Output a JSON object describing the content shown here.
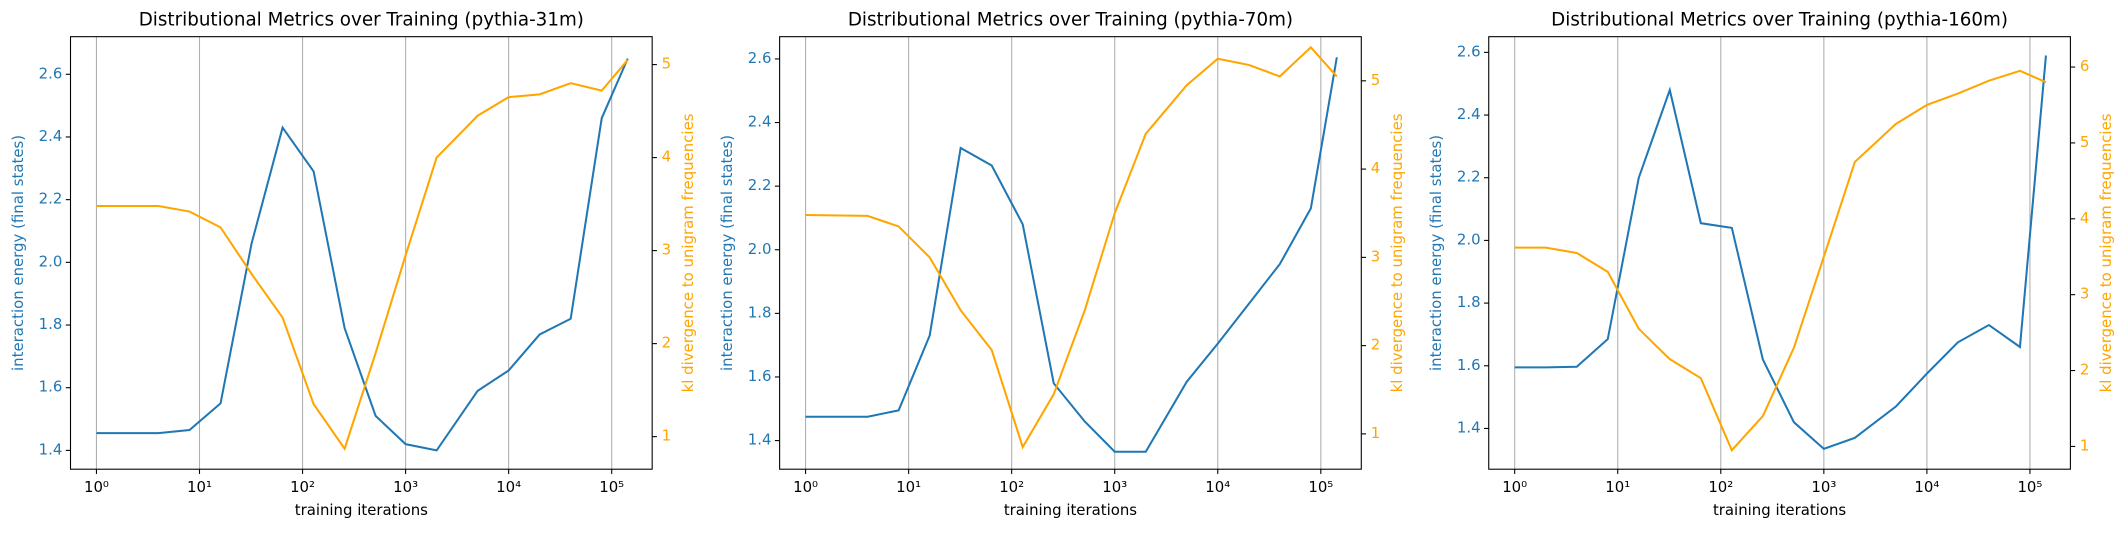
{
  "chart_data": [
    {
      "type": "line",
      "title": "Distributional Metrics over Training (pythia-31m)",
      "xlabel": "training iterations",
      "ylabel": "interaction energy (final states)",
      "y2label": "kl divergence to unigram frequencies",
      "xscale": "log",
      "grid": "x",
      "x": [
        1,
        4,
        8,
        16,
        32,
        64,
        128,
        256,
        512,
        1000,
        2000,
        5000,
        10000,
        20000,
        40000,
        80000,
        143000
      ],
      "series": [
        {
          "color": "#1f77b4",
          "axis": "y",
          "values": [
            1.455,
            1.455,
            1.465,
            1.55,
            2.06,
            2.43,
            2.29,
            1.79,
            1.51,
            1.42,
            1.4,
            1.59,
            1.655,
            1.77,
            1.82,
            2.46,
            2.65
          ]
        },
        {
          "color": "#ffa500",
          "axis": "y2",
          "values": [
            3.48,
            3.48,
            3.42,
            3.25,
            2.75,
            2.28,
            1.35,
            0.87,
            1.9,
            2.95,
            4.0,
            4.45,
            4.65,
            4.68,
            4.8,
            4.72,
            5.05
          ]
        }
      ],
      "xlim": [
        0.56,
        247000
      ],
      "xticks": [
        {
          "value": 1,
          "label": "10⁰"
        },
        {
          "value": 10,
          "label": "10¹"
        },
        {
          "value": 100,
          "label": "10²"
        },
        {
          "value": 1000,
          "label": "10³"
        },
        {
          "value": 10000,
          "label": "10⁴"
        },
        {
          "value": 100000,
          "label": "10⁵"
        }
      ],
      "ylim": [
        1.34,
        2.72
      ],
      "yticks": [
        1.4,
        1.6,
        1.8,
        {
          "value": 2,
          "label": "2.0"
        },
        2.2,
        2.4,
        2.6
      ],
      "y2lim": [
        0.65,
        5.3
      ],
      "y2ticks": [
        1,
        2,
        3,
        4,
        5
      ]
    },
    {
      "type": "line",
      "title": "Distributional Metrics over Training (pythia-70m)",
      "xlabel": "training iterations",
      "ylabel": "interaction energy (final states)",
      "y2label": "kl divergence to unigram frequencies",
      "xscale": "log",
      "grid": "x",
      "x": [
        1,
        4,
        8,
        16,
        32,
        64,
        128,
        256,
        512,
        1000,
        2000,
        5000,
        10000,
        20000,
        40000,
        80000,
        143000
      ],
      "series": [
        {
          "color": "#1f77b4",
          "axis": "y",
          "values": [
            1.475,
            1.475,
            1.495,
            1.73,
            2.32,
            2.265,
            2.08,
            1.58,
            1.46,
            1.365,
            1.365,
            1.585,
            1.705,
            1.83,
            1.955,
            2.13,
            2.605
          ]
        },
        {
          "color": "#ffa500",
          "axis": "y2",
          "values": [
            3.48,
            3.47,
            3.35,
            3.0,
            2.4,
            1.95,
            0.85,
            1.45,
            2.4,
            3.5,
            4.4,
            4.95,
            5.25,
            5.18,
            5.05,
            5.38,
            5.05
          ]
        }
      ],
      "xlim": [
        0.56,
        247000
      ],
      "xticks": [
        {
          "value": 1,
          "label": "10⁰"
        },
        {
          "value": 10,
          "label": "10¹"
        },
        {
          "value": 100,
          "label": "10²"
        },
        {
          "value": 1000,
          "label": "10³"
        },
        {
          "value": 10000,
          "label": "10⁴"
        },
        {
          "value": 100000,
          "label": "10⁵"
        }
      ],
      "ylim": [
        1.31,
        2.67
      ],
      "yticks": [
        1.4,
        1.6,
        1.8,
        {
          "value": 2,
          "label": "2.0"
        },
        2.2,
        2.4,
        2.6
      ],
      "y2lim": [
        0.6,
        5.5
      ],
      "y2ticks": [
        1,
        2,
        3,
        4,
        5
      ]
    },
    {
      "type": "line",
      "title": "Distributional Metrics over Training (pythia-160m)",
      "xlabel": "training iterations",
      "ylabel": "interaction energy (final states)",
      "y2label": "kl divergence to unigram frequencies",
      "xscale": "log",
      "grid": "x",
      "x": [
        1,
        2,
        4,
        8,
        16,
        32,
        64,
        128,
        256,
        512,
        1000,
        2000,
        5000,
        10000,
        20000,
        40000,
        80000,
        143000
      ],
      "series": [
        {
          "color": "#1f77b4",
          "axis": "y",
          "values": [
            1.595,
            1.595,
            1.597,
            1.685,
            2.2,
            2.48,
            2.055,
            2.04,
            1.62,
            1.42,
            1.335,
            1.37,
            1.47,
            1.575,
            1.675,
            1.73,
            1.66,
            2.59
          ]
        },
        {
          "color": "#ffa500",
          "axis": "y2",
          "values": [
            3.62,
            3.62,
            3.55,
            3.3,
            2.55,
            2.15,
            1.9,
            0.95,
            1.4,
            2.3,
            3.5,
            4.75,
            5.25,
            5.5,
            5.65,
            5.82,
            5.95,
            5.8
          ]
        }
      ],
      "xlim": [
        0.56,
        247000
      ],
      "xticks": [
        {
          "value": 1,
          "label": "10⁰"
        },
        {
          "value": 10,
          "label": "10¹"
        },
        {
          "value": 100,
          "label": "10²"
        },
        {
          "value": 1000,
          "label": "10³"
        },
        {
          "value": 10000,
          "label": "10⁴"
        },
        {
          "value": 100000,
          "label": "10⁵"
        }
      ],
      "ylim": [
        1.27,
        2.65
      ],
      "yticks": [
        1.4,
        1.6,
        1.8,
        {
          "value": 2,
          "label": "2.0"
        },
        2.2,
        2.4,
        2.6
      ],
      "y2lim": [
        0.7,
        6.4
      ],
      "y2ticks": [
        1,
        2,
        3,
        4,
        5,
        6
      ]
    }
  ]
}
